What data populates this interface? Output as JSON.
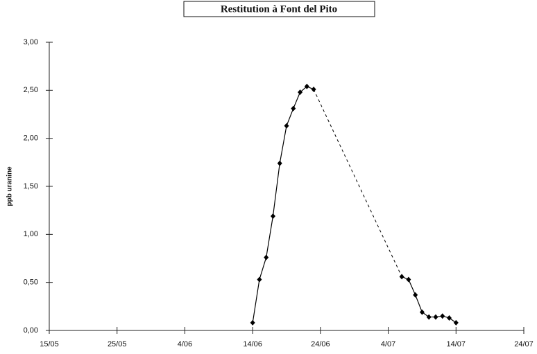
{
  "chart_data": {
    "type": "line",
    "title": "Restitution à Font del Pito",
    "y_label": "ppb uranine",
    "x": [
      "14/06",
      "15/06",
      "16/06",
      "17/06",
      "18/06",
      "19/06",
      "20/06",
      "21/06",
      "22/06",
      "23/06",
      "6/07",
      "7/07",
      "8/07",
      "9/07",
      "10/07",
      "11/07",
      "12/07",
      "13/07",
      "14/07"
    ],
    "series": [
      {
        "color": "#000000",
        "values": [
          0.08,
          0.53,
          0.76,
          1.19,
          1.74,
          2.13,
          2.31,
          2.48,
          2.54,
          2.51,
          0.56,
          0.53,
          0.37,
          0.19,
          0.14,
          0.14,
          0.15,
          0.13,
          0.08
        ]
      }
    ],
    "xlim": [
      "15/05",
      "24/07"
    ],
    "xticks": [
      "15/05",
      "25/05",
      "4/06",
      "14/06",
      "24/06",
      "4/07",
      "14/07",
      "24/07"
    ],
    "ylim": [
      0,
      3
    ],
    "yticks": [
      {
        "value": 0,
        "label": "0,00"
      },
      {
        "value": 0.5,
        "label": "0,50"
      },
      {
        "value": 1,
        "label": "1,00"
      },
      {
        "value": 1.5,
        "label": "1,50"
      },
      {
        "value": 2,
        "label": "2,00"
      },
      {
        "value": 2.5,
        "label": "2,50"
      },
      {
        "value": 3,
        "label": "3,00"
      }
    ],
    "grid": false
  }
}
